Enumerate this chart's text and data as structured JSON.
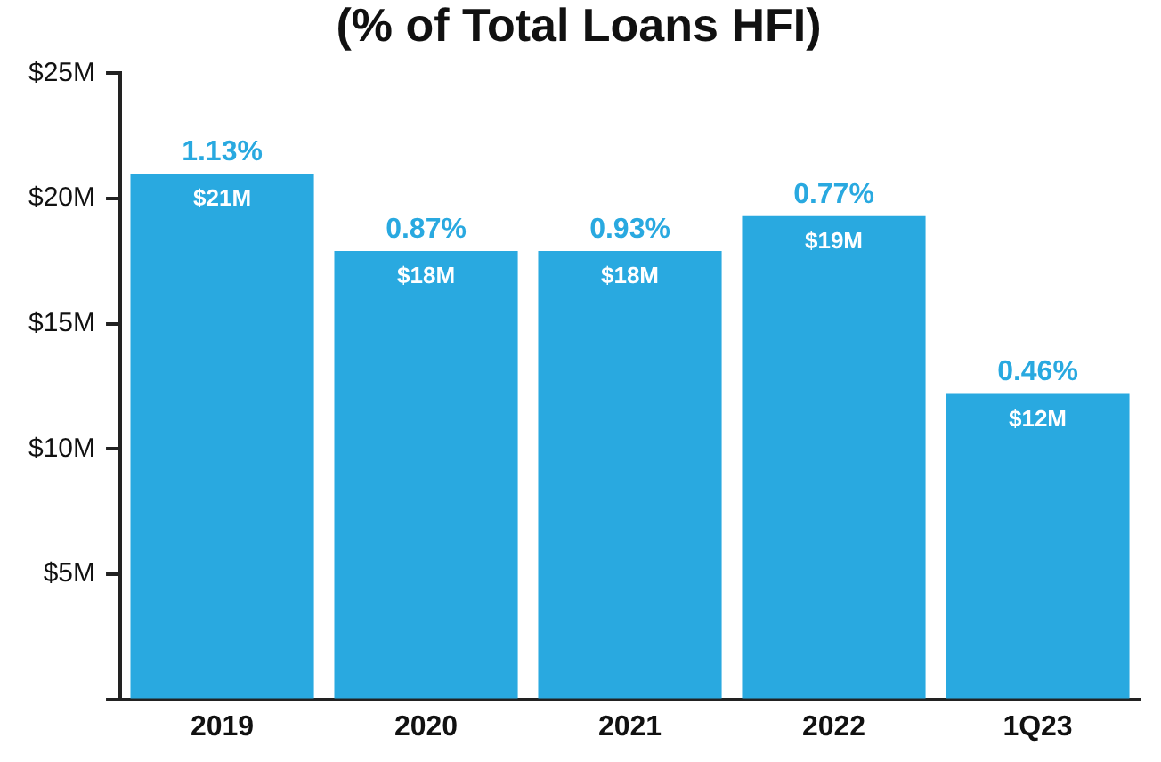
{
  "chart_data": {
    "type": "bar",
    "title": "(% of Total Loans HFI)",
    "categories": [
      "2019",
      "2020",
      "2021",
      "2022",
      "1Q23"
    ],
    "values": [
      21,
      17.9,
      17.9,
      19.3,
      12.2
    ],
    "value_labels": [
      "$21M",
      "$18M",
      "$18M",
      "$19M",
      "$12M"
    ],
    "color": "#29a9e0",
    "ylim": [
      0,
      25
    ],
    "yticks": [
      {
        "value": 0,
        "label": null
      },
      {
        "value": 5,
        "label": "$5M"
      },
      {
        "value": 10,
        "label": "$10M"
      },
      {
        "value": 15,
        "label": "$15M"
      },
      {
        "value": 20,
        "label": "$20M"
      },
      {
        "value": 25,
        "label": "$25M"
      }
    ],
    "annotations": [
      {
        "text": "1.13%",
        "x": "2019",
        "y": 21
      },
      {
        "text": "0.87%",
        "x": "2020",
        "y": 17.9
      },
      {
        "text": "0.93%",
        "x": "2021",
        "y": 17.9
      },
      {
        "text": "0.77%",
        "x": "2022",
        "y": 19.3
      },
      {
        "text": "0.46%",
        "x": "1Q23",
        "y": 12.2
      }
    ],
    "grid": false,
    "legend": false
  }
}
